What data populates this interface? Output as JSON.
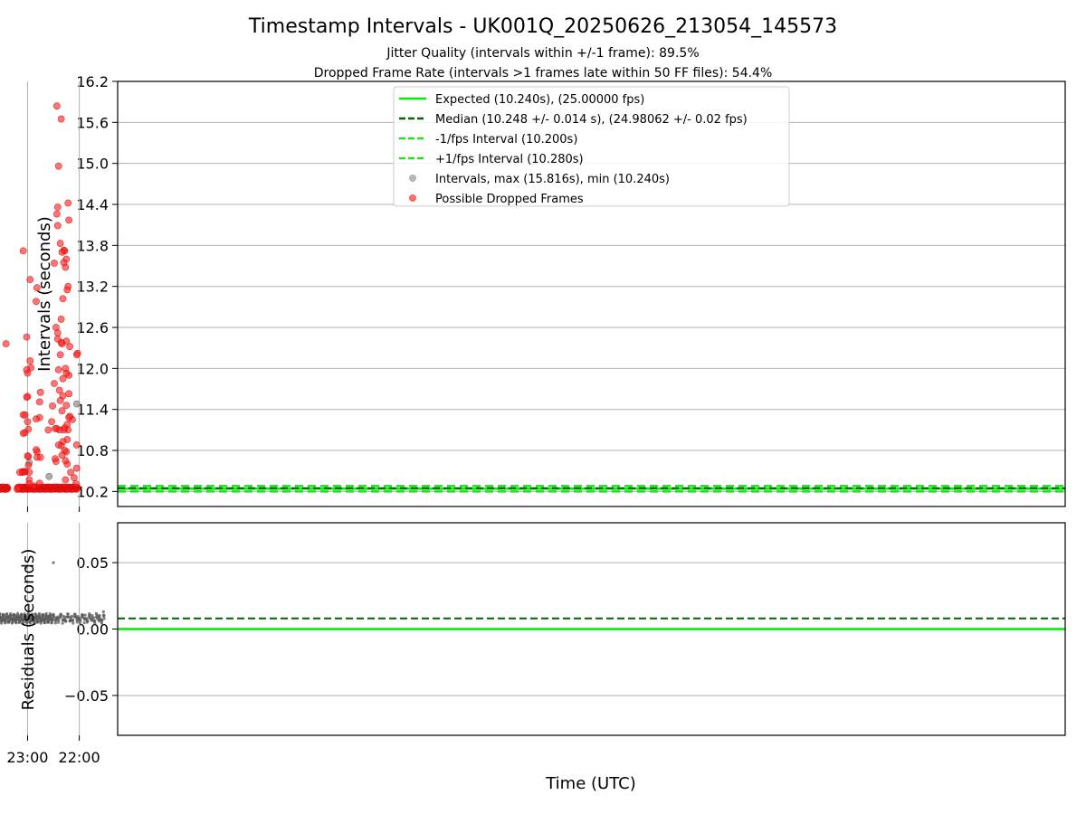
{
  "chart_data": [
    {
      "type": "scatter",
      "title": "Timestamp Intervals - UK001Q_20250626_213054_145573",
      "subtitles": [
        "Jitter Quality (intervals within +/-1 frame): 89.5%",
        "Dropped Frame Rate (intervals >1 frames late within 50 FF files): 54.4%"
      ],
      "xlabel": "",
      "ylabel": "Intervals (seconds)",
      "xlim": [
        "21:15:30",
        "02:56:30"
      ],
      "ylim": [
        9.98,
        16.2
      ],
      "yticks": [
        "10.2",
        "10.8",
        "11.4",
        "12.0",
        "12.6",
        "13.2",
        "13.8",
        "14.4",
        "15.0",
        "15.6",
        "16.2"
      ],
      "grid": true,
      "legend_position": "top-center",
      "legend": [
        {
          "label": "Expected (10.240s), (25.00000 fps)",
          "style": "solid",
          "color": "#00ee00"
        },
        {
          "label": "Median (10.248 +/- 0.014 s), (24.98062 +/- 0.02 fps)",
          "style": "dashed",
          "color": "#006400"
        },
        {
          "label": "-1/fps Interval (10.200s)",
          "style": "dashed",
          "color": "#22dd22"
        },
        {
          "label": "+1/fps Interval (10.280s)",
          "style": "dashed",
          "color": "#22dd22"
        },
        {
          "label": "Intervals, max (15.816s), min (10.240s)",
          "style": "marker",
          "color": "#9a9a9a"
        },
        {
          "label": "Possible Dropped Frames",
          "style": "marker",
          "color": "#ff3030"
        }
      ],
      "reference_lines": {
        "expected": 10.24,
        "median": 10.248,
        "minus_fps": 10.2,
        "plus_fps": 10.28
      },
      "series": [
        {
          "name": "Intervals, max (15.816s), min (10.240s)",
          "color": "#9a9a9a",
          "points": [
            [
              "22:03",
              11.48
            ],
            [
              "22:35",
              10.42
            ],
            [
              "22:58",
              10.62
            ],
            [
              "23:38",
              10.93
            ],
            [
              "23:39",
              10.29
            ],
            [
              "23:54",
              10.67
            ],
            [
              "24:00",
              10.68
            ],
            [
              "24:09",
              11.2
            ],
            [
              "24:20",
              11.59
            ],
            [
              "24:37",
              10.61
            ],
            [
              "24:38",
              10.36
            ],
            [
              "24:42",
              11.2
            ],
            [
              "25:40",
              10.65
            ],
            [
              "26:10",
              11.13
            ],
            [
              "26:24",
              11.09
            ],
            [
              "26:54",
              11.35
            ],
            [
              "26:54",
              10.61
            ]
          ]
        },
        {
          "name": "Possible Dropped Frames",
          "color": "#ff3030",
          "points": [
            [
              "22:02",
              12.22
            ],
            [
              "22:03",
              12.2
            ],
            [
              "22:03",
              10.88
            ],
            [
              "22:03",
              10.54
            ],
            [
              "22:04",
              10.31
            ],
            [
              "22:06",
              10.4
            ],
            [
              "22:08",
              11.25
            ],
            [
              "22:10",
              10.48
            ],
            [
              "22:11",
              11.3
            ],
            [
              "22:11",
              12.32
            ],
            [
              "22:12",
              14.17
            ],
            [
              "22:12",
              11.9
            ],
            [
              "22:12",
              11.63
            ],
            [
              "22:12",
              11.28
            ],
            [
              "22:13",
              14.42
            ],
            [
              "22:13",
              13.2
            ],
            [
              "22:13",
              11.1
            ],
            [
              "22:14",
              13.15
            ],
            [
              "22:14",
              11.18
            ],
            [
              "22:14",
              10.96
            ],
            [
              "22:14",
              10.6
            ],
            [
              "22:15",
              13.6
            ],
            [
              "22:15",
              12.4
            ],
            [
              "22:15",
              11.93
            ],
            [
              "22:15",
              11.46
            ],
            [
              "22:15",
              10.78
            ],
            [
              "22:16",
              13.48
            ],
            [
              "22:16",
              12.0
            ],
            [
              "22:16",
              10.65
            ],
            [
              "22:16",
              10.37
            ],
            [
              "22:17",
              13.72
            ],
            [
              "22:17",
              11.13
            ],
            [
              "22:17",
              10.8
            ],
            [
              "22:18",
              13.55
            ],
            [
              "22:18",
              13.73
            ],
            [
              "22:18",
              11.1
            ],
            [
              "22:19",
              11.85
            ],
            [
              "22:19",
              11.6
            ],
            [
              "22:19",
              13.02
            ],
            [
              "22:19",
              10.93
            ],
            [
              "22:20",
              13.7
            ],
            [
              "22:20",
              11.38
            ],
            [
              "22:20",
              12.36
            ],
            [
              "22:20",
              10.73
            ],
            [
              "22:21",
              15.65
            ],
            [
              "22:21",
              12.72
            ],
            [
              "22:21",
              12.38
            ],
            [
              "22:21",
              10.87
            ],
            [
              "22:22",
              11.53
            ],
            [
              "22:22",
              13.83
            ],
            [
              "22:22",
              12.2
            ],
            [
              "22:23",
              11.68
            ],
            [
              "22:23",
              11.1
            ],
            [
              "22:24",
              14.96
            ],
            [
              "22:24",
              11.98
            ],
            [
              "22:24",
              10.88
            ],
            [
              "22:25",
              14.36
            ],
            [
              "22:25",
              14.09
            ],
            [
              "22:25",
              12.52
            ],
            [
              "22:25",
              12.43
            ],
            [
              "22:26",
              15.84
            ],
            [
              "22:26",
              14.26
            ],
            [
              "22:26",
              11.12
            ],
            [
              "22:27",
              12.6
            ],
            [
              "22:27",
              10.64
            ],
            [
              "22:28",
              10.68
            ],
            [
              "22:28",
              11.12
            ],
            [
              "22:29",
              11.78
            ],
            [
              "22:29",
              13.54
            ],
            [
              "22:31",
              11.45
            ],
            [
              "22:32",
              11.22
            ],
            [
              "22:36",
              11.1
            ],
            [
              "22:45",
              11.65
            ],
            [
              "22:45",
              10.7
            ],
            [
              "22:46",
              11.51
            ],
            [
              "22:46",
              11.28
            ],
            [
              "22:46",
              10.32
            ],
            [
              "22:49",
              13.18
            ],
            [
              "22:49",
              10.78
            ],
            [
              "22:49",
              10.7
            ],
            [
              "22:50",
              12.98
            ],
            [
              "22:50",
              10.81
            ],
            [
              "22:50",
              11.26
            ],
            [
              "22:53",
              10.28
            ],
            [
              "22:56",
              12.01
            ],
            [
              "22:57",
              13.3
            ],
            [
              "22:57",
              12.11
            ],
            [
              "22:58",
              10.37
            ],
            [
              "22:58",
              10.48
            ],
            [
              "22:58",
              10.31
            ],
            [
              "22:59",
              10.71
            ],
            [
              "22:59",
              10.58
            ],
            [
              "22:59",
              11.11
            ],
            [
              "23:00",
              11.93
            ],
            [
              "23:00",
              11.59
            ],
            [
              "23:00",
              10.72
            ],
            [
              "23:00",
              11.22
            ],
            [
              "23:01",
              11.98
            ],
            [
              "23:01",
              12.46
            ],
            [
              "23:01",
              11.58
            ],
            [
              "23:03",
              10.49
            ],
            [
              "23:03",
              11.06
            ],
            [
              "23:03",
              11.32
            ],
            [
              "23:04",
              10.49
            ],
            [
              "23:05",
              13.72
            ],
            [
              "23:05",
              11.32
            ],
            [
              "23:05",
              11.05
            ],
            [
              "23:06",
              10.49
            ],
            [
              "23:06",
              10.48
            ],
            [
              "23:09",
              10.48
            ],
            [
              "23:25",
              12.36
            ],
            [
              "23:44",
              11.83
            ],
            [
              "23:49",
              11.39
            ],
            [
              "23:53",
              10.71
            ],
            [
              "23:54",
              10.51
            ],
            [
              "24:06",
              12.19
            ],
            [
              "24:07",
              11.43
            ],
            [
              "24:09",
              11.52
            ],
            [
              "24:10",
              13.73
            ],
            [
              "24:22",
              10.89
            ],
            [
              "24:43",
              10.85
            ],
            [
              "25:09",
              11.95
            ],
            [
              "25:20",
              12.19
            ],
            [
              "25:21",
              11.2
            ],
            [
              "25:31",
              10.52
            ],
            [
              "25:46",
              11.96
            ],
            [
              "25:58",
              11.79
            ],
            [
              "25:59",
              10.85
            ],
            [
              "26:02",
              10.32
            ],
            [
              "26:03",
              10.76
            ],
            [
              "26:04",
              10.33
            ],
            [
              "26:04",
              10.6
            ],
            [
              "26:05",
              11.73
            ],
            [
              "26:05",
              11.0
            ],
            [
              "26:06",
              11.35
            ],
            [
              "26:06",
              10.93
            ],
            [
              "26:06",
              11.58
            ],
            [
              "26:07",
              10.48
            ],
            [
              "26:08",
              11.38
            ],
            [
              "26:08",
              10.71
            ],
            [
              "26:09",
              14.43
            ],
            [
              "26:09",
              12.7
            ],
            [
              "26:10",
              14.52
            ],
            [
              "26:10",
              12.1
            ],
            [
              "26:11",
              11.7
            ],
            [
              "26:11",
              10.42
            ],
            [
              "26:12",
              12.91
            ],
            [
              "26:12",
              12.03
            ],
            [
              "26:13",
              11.97
            ],
            [
              "26:13",
              11.55
            ],
            [
              "26:13",
              10.94
            ],
            [
              "26:14",
              12.21
            ],
            [
              "26:14",
              13.58
            ],
            [
              "26:14",
              11.95
            ],
            [
              "26:15",
              11.34
            ],
            [
              "26:15",
              12.55
            ],
            [
              "26:16",
              14.49
            ],
            [
              "26:17",
              12.22
            ],
            [
              "26:17",
              12.46
            ],
            [
              "26:18",
              11.72
            ],
            [
              "26:18",
              11.13
            ],
            [
              "26:18",
              11.05
            ],
            [
              "26:19",
              11.42
            ],
            [
              "26:19",
              10.66
            ],
            [
              "26:20",
              11.18
            ],
            [
              "26:20",
              11.98
            ],
            [
              "26:20",
              11.18
            ],
            [
              "26:21",
              11.92
            ],
            [
              "26:21",
              11.83
            ],
            [
              "26:21",
              10.95
            ],
            [
              "26:22",
              14.0
            ],
            [
              "26:22",
              11.71
            ],
            [
              "26:23",
              13.85
            ],
            [
              "26:23",
              10.75
            ],
            [
              "26:27",
              10.85
            ],
            [
              "26:34",
              11.91
            ],
            [
              "26:34",
              12.09
            ],
            [
              "26:35",
              12.43
            ]
          ]
        }
      ],
      "baseline_dropped_bands": [
        [
          "22:02",
          "22:28"
        ],
        [
          "22:28",
          "23:12"
        ],
        [
          "23:23",
          "23:37"
        ],
        [
          "23:42",
          "23:56"
        ],
        [
          "24:03",
          "24:07"
        ],
        [
          "24:08",
          "24:24"
        ],
        [
          "24:26",
          "24:30"
        ],
        [
          "24:38",
          "24:42"
        ],
        [
          "24:47",
          "25:05"
        ],
        [
          "25:13",
          "25:29"
        ],
        [
          "25:33",
          "25:52"
        ],
        [
          "25:55",
          "26:13"
        ],
        [
          "26:14",
          "26:40"
        ]
      ]
    },
    {
      "type": "scatter",
      "xlabel": "Time (UTC)",
      "ylabel": "Residuals (seconds)",
      "xlim": [
        "21:15:30",
        "02:56:30"
      ],
      "ylim": [
        -0.08,
        0.08
      ],
      "xticks": [
        "22:00",
        "23:00",
        "00:00",
        "01:00",
        "02:00"
      ],
      "yticks": [
        "−0.05",
        "0.00",
        "0.05"
      ],
      "grid": true,
      "reference_lines": {
        "expected": 0.0,
        "median": 0.008
      },
      "series": [
        {
          "name": "",
          "color": "#5a5a5a",
          "residual_band": {
            "start": "21:31",
            "end": "26:56",
            "center": 0.008,
            "spread": 0.0025
          },
          "outliers": [
            [
              "21:32",
              0.013
            ],
            [
              "22:30",
              0.05
            ],
            [
              "23:02",
              0.046
            ],
            [
              "24:10",
              0.048
            ],
            [
              "25:55",
              0.048
            ],
            [
              "26:40",
              0.048
            ],
            [
              "27:10",
              0.048
            ]
          ]
        }
      ]
    }
  ]
}
